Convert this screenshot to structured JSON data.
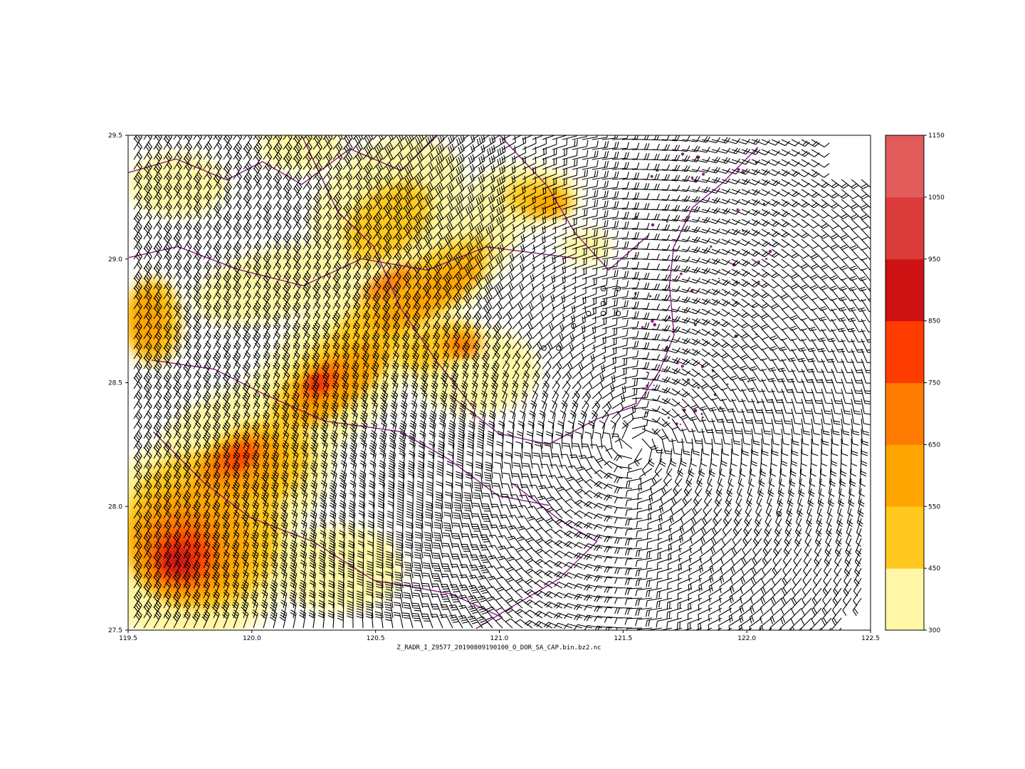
{
  "plot": {
    "xlabel": "Z_RADR_I_Z9577_20190809190100_O_DOR_SA_CAP.bin.bz2.nc",
    "x_ticks": [
      "119.5",
      "120.0",
      "120.5",
      "121.0",
      "121.5",
      "122.0",
      "122.5"
    ],
    "y_ticks": [
      "29.5",
      "29.0",
      "28.5",
      "28.0",
      "27.5"
    ],
    "xlim": [
      119.5,
      122.5
    ],
    "ylim": [
      27.5,
      29.5
    ]
  },
  "colorbar": {
    "levels": [
      300,
      450,
      550,
      650,
      750,
      850,
      950,
      1050,
      1150
    ],
    "tick_labels": [
      "1150",
      "1050",
      "950",
      "850",
      "750",
      "650",
      "550",
      "450",
      "300"
    ],
    "colors": [
      "#fff7a6",
      "#ffc91f",
      "#ffa500",
      "#ff7b00",
      "#ff3c00",
      "#cc1212",
      "#dc3b3b",
      "#e25b5b"
    ]
  },
  "chart_data": {
    "type": "heatmap",
    "overlay": "wind barbs",
    "boundaries_color": "#8a1a8a",
    "barb_color": "#000000",
    "vortex_center": [
      121.55,
      28.25
    ],
    "xlim": [
      119.5,
      122.5
    ],
    "ylim": [
      27.5,
      29.5
    ]
  }
}
